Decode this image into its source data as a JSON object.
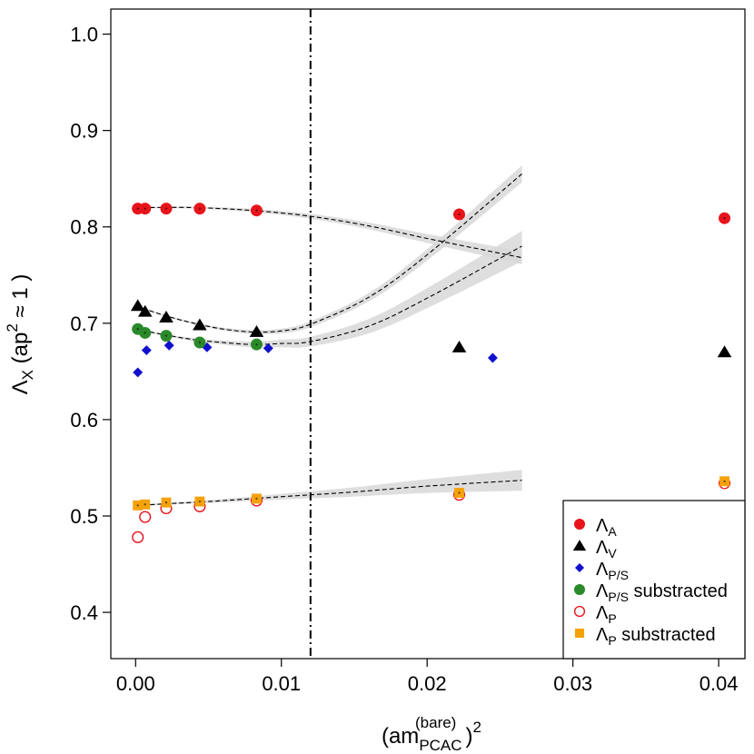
{
  "chart_data": {
    "type": "scatter",
    "title": "",
    "xlabel": {
      "base": "(am",
      "sup": "(bare)",
      "sub": "PCAC",
      "tail": ")",
      "power": "2"
    },
    "ylabel": {
      "base": "Λ",
      "sub": "X",
      "open": " (ap",
      "power": "2",
      "tail": " ≈ 1 )"
    },
    "xlim": [
      -0.0017,
      0.0418
    ],
    "ylim": [
      0.352,
      1.026
    ],
    "xticks": [
      0.0,
      0.01,
      0.02,
      0.03,
      0.04
    ],
    "xtick_labels": [
      "0.00",
      "0.01",
      "0.02",
      "0.03",
      "0.04"
    ],
    "yticks": [
      0.4,
      0.5,
      0.6,
      0.7,
      0.8,
      0.9,
      1.0
    ],
    "ytick_labels": [
      "0.4",
      "0.5",
      "0.6",
      "0.7",
      "0.8",
      "0.9",
      "1.0"
    ],
    "grid": false,
    "legend_position": "bottom-right",
    "vertical_line": {
      "x": 0.012,
      "style": "dash-dot"
    },
    "series": [
      {
        "name": "Λ_A",
        "legend_base": "Λ",
        "legend_sub": "A",
        "legend_suffix": "",
        "marker": "circle",
        "filled": true,
        "color": "#e8141b",
        "x": [
          0.00015,
          0.00065,
          0.0021,
          0.0044,
          0.0083,
          0.0222,
          0.0404
        ],
        "y": [
          0.819,
          0.819,
          0.819,
          0.819,
          0.817,
          0.813,
          0.809
        ]
      },
      {
        "name": "Λ_V",
        "legend_base": "Λ",
        "legend_sub": "V",
        "legend_suffix": "",
        "marker": "triangle",
        "filled": true,
        "color": "#000000",
        "x": [
          0.00015,
          0.00065,
          0.0021,
          0.0044,
          0.0083,
          0.0222,
          0.0404
        ],
        "y": [
          0.718,
          0.712,
          0.706,
          0.698,
          0.691,
          0.675,
          0.67
        ]
      },
      {
        "name": "Λ_P/S",
        "legend_base": "Λ",
        "legend_sub": "P/S",
        "legend_suffix": "",
        "marker": "diamond",
        "filled": true,
        "color": "#1010cc",
        "x": [
          0.00015,
          0.00075,
          0.0023,
          0.0049,
          0.0091,
          0.0245
        ],
        "y": [
          0.649,
          0.672,
          0.677,
          0.675,
          0.674,
          0.664
        ]
      },
      {
        "name": "Λ_P/S substracted",
        "legend_base": "Λ",
        "legend_sub": "P/S",
        "legend_suffix": " substracted",
        "marker": "circle",
        "filled": true,
        "color": "#2a8a2a",
        "x": [
          0.00015,
          0.00065,
          0.0021,
          0.0044,
          0.0083
        ],
        "y": [
          0.694,
          0.69,
          0.687,
          0.68,
          0.678
        ]
      },
      {
        "name": "Λ_P",
        "legend_base": "Λ",
        "legend_sub": "P",
        "legend_suffix": "",
        "marker": "circle",
        "filled": false,
        "color": "#e8141b",
        "x": [
          0.00015,
          0.00065,
          0.0021,
          0.0044,
          0.0083,
          0.0222,
          0.0404
        ],
        "y": [
          0.478,
          0.499,
          0.508,
          0.51,
          0.516,
          0.522,
          0.534
        ]
      },
      {
        "name": "Λ_P substracted",
        "legend_base": "Λ",
        "legend_sub": "P",
        "legend_suffix": " substracted",
        "marker": "square",
        "filled": true,
        "color": "#f5a20a",
        "x": [
          0.00015,
          0.00065,
          0.0021,
          0.0044,
          0.0083,
          0.0222,
          0.0404
        ],
        "y": [
          0.511,
          0.512,
          0.514,
          0.515,
          0.518,
          0.524,
          0.536
        ]
      }
    ],
    "fits": [
      {
        "name": "fit-lambda-a",
        "x": [
          0.0,
          0.004,
          0.008,
          0.012,
          0.016,
          0.02,
          0.0265
        ],
        "y": [
          0.82,
          0.82,
          0.817,
          0.811,
          0.801,
          0.788,
          0.768
        ],
        "band": 0.006
      },
      {
        "name": "fit-lambda-v",
        "x": [
          0.0,
          0.002,
          0.004,
          0.006,
          0.008,
          0.01,
          0.012,
          0.016,
          0.02,
          0.0265
        ],
        "y": [
          0.718,
          0.708,
          0.7,
          0.694,
          0.691,
          0.692,
          0.699,
          0.727,
          0.771,
          0.855
        ],
        "band": 0.008
      },
      {
        "name": "fit-lambda-ps-sub",
        "x": [
          0.0,
          0.002,
          0.004,
          0.006,
          0.008,
          0.01,
          0.012,
          0.016,
          0.02,
          0.0265
        ],
        "y": [
          0.694,
          0.688,
          0.683,
          0.68,
          0.678,
          0.679,
          0.681,
          0.697,
          0.726,
          0.78
        ],
        "band": 0.015
      },
      {
        "name": "fit-lambda-p-sub",
        "x": [
          0.0,
          0.005,
          0.01,
          0.015,
          0.02,
          0.0265
        ],
        "y": [
          0.511,
          0.515,
          0.52,
          0.525,
          0.531,
          0.537
        ],
        "band": 0.01
      }
    ]
  }
}
